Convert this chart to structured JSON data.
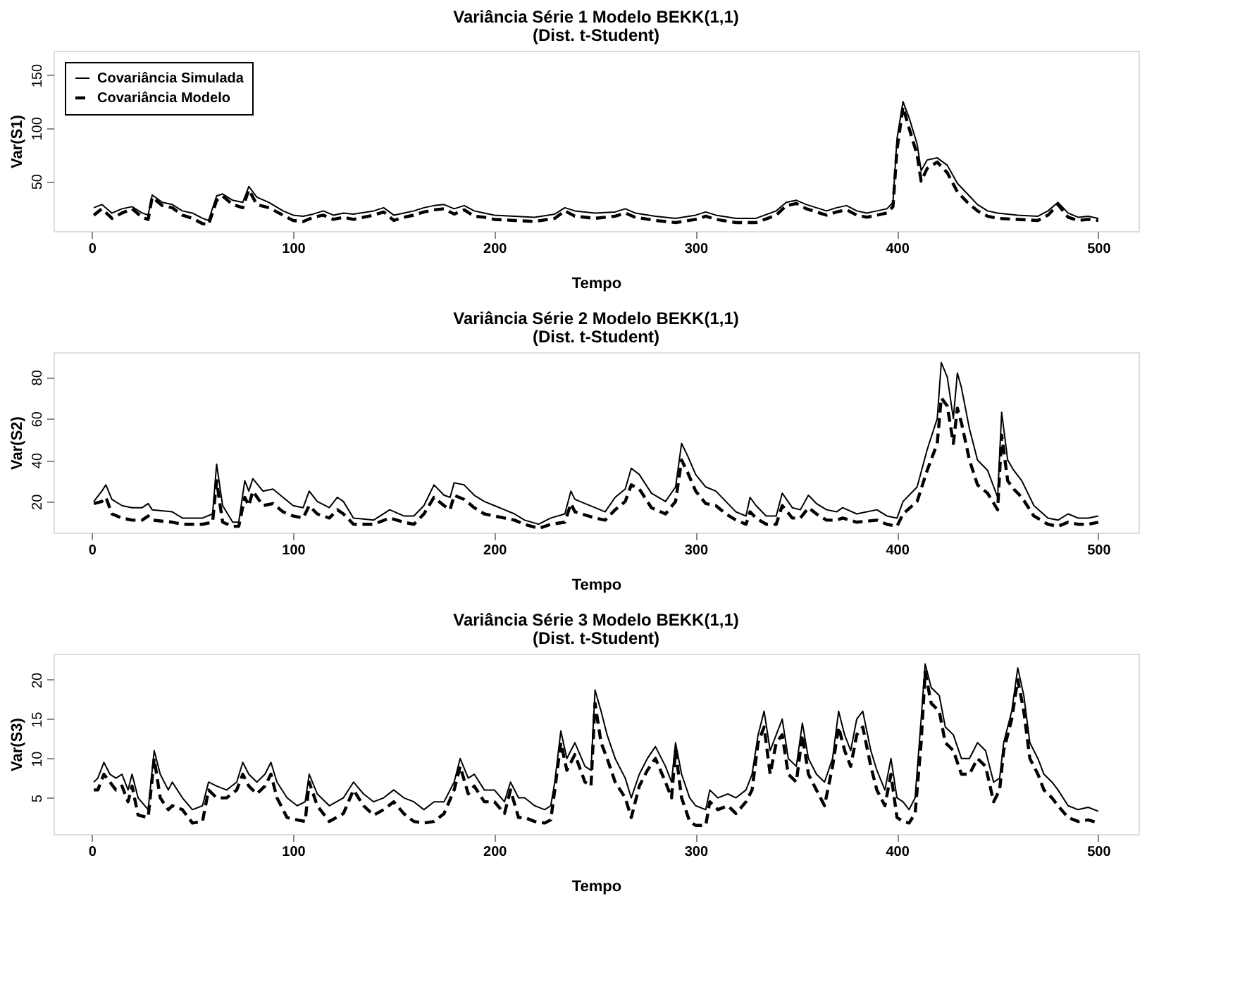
{
  "chart_data": [
    {
      "type": "line",
      "title": "Variância Série 1 Modelo BEKK(1,1)",
      "subtitle": "(Dist. t-Student)",
      "xlabel": "Tempo",
      "ylabel": "Var(S1)",
      "xlim": [
        -19,
        520
      ],
      "xticks": [
        0,
        100,
        200,
        300,
        400,
        500
      ],
      "ylim": [
        3,
        173
      ],
      "yticks": [
        50,
        100,
        150
      ],
      "legend": "top left",
      "x": [
        1,
        5,
        10,
        15,
        20,
        25,
        28,
        30,
        35,
        40,
        45,
        50,
        55,
        58,
        62,
        65,
        70,
        75,
        78,
        82,
        88,
        95,
        100,
        105,
        110,
        115,
        120,
        125,
        130,
        140,
        145,
        150,
        155,
        160,
        165,
        170,
        175,
        180,
        185,
        190,
        195,
        200,
        210,
        220,
        230,
        235,
        240,
        250,
        260,
        265,
        270,
        280,
        290,
        300,
        305,
        310,
        320,
        330,
        340,
        345,
        350,
        355,
        360,
        365,
        370,
        375,
        380,
        385,
        390,
        395,
        398,
        400,
        403,
        406,
        410,
        412,
        415,
        420,
        425,
        430,
        435,
        440,
        445,
        450,
        460,
        470,
        475,
        480,
        485,
        490,
        495,
        500
      ],
      "series": [
        {
          "name": "Covariância Simulada",
          "color": "#000000",
          "line_style": "solid",
          "values": [
            25,
            28,
            20,
            24,
            26,
            20,
            18,
            37,
            30,
            28,
            22,
            20,
            15,
            13,
            36,
            38,
            32,
            30,
            45,
            35,
            30,
            22,
            18,
            17,
            19,
            22,
            18,
            20,
            19,
            22,
            25,
            18,
            20,
            22,
            25,
            27,
            28,
            24,
            27,
            22,
            20,
            18,
            17,
            16,
            19,
            25,
            22,
            20,
            21,
            24,
            20,
            17,
            15,
            18,
            21,
            18,
            15,
            15,
            22,
            30,
            32,
            28,
            25,
            22,
            25,
            27,
            22,
            20,
            22,
            24,
            30,
            90,
            125,
            110,
            85,
            60,
            70,
            72,
            65,
            48,
            38,
            28,
            22,
            20,
            18,
            17,
            22,
            30,
            20,
            16,
            17,
            15
          ]
        },
        {
          "name": "Covariância Modelo",
          "color": "#000000",
          "line_style": "dashed",
          "values": [
            18,
            24,
            15,
            20,
            24,
            16,
            14,
            35,
            27,
            25,
            18,
            15,
            10,
            9,
            32,
            36,
            28,
            25,
            42,
            28,
            25,
            18,
            13,
            12,
            16,
            18,
            14,
            16,
            14,
            18,
            21,
            13,
            16,
            18,
            21,
            23,
            24,
            19,
            23,
            17,
            16,
            14,
            13,
            12,
            15,
            22,
            17,
            15,
            17,
            20,
            16,
            13,
            11,
            14,
            17,
            14,
            11,
            11,
            18,
            27,
            29,
            24,
            21,
            18,
            21,
            23,
            18,
            16,
            18,
            20,
            26,
            80,
            120,
            100,
            75,
            50,
            62,
            68,
            58,
            40,
            30,
            22,
            17,
            15,
            14,
            13,
            18,
            28,
            16,
            13,
            14,
            13
          ]
        }
      ]
    },
    {
      "type": "line",
      "title": "Variância Série 2 Modelo BEKK(1,1)",
      "subtitle": "(Dist. t-Student)",
      "xlabel": "Tempo",
      "ylabel": "Var(S2)",
      "xlim": [
        -19,
        520
      ],
      "xticks": [
        0,
        100,
        200,
        300,
        400,
        500
      ],
      "ylim": [
        5,
        92
      ],
      "yticks": [
        20,
        40,
        60,
        80
      ],
      "x": [
        1,
        5,
        7,
        10,
        15,
        20,
        25,
        28,
        30,
        40,
        45,
        55,
        60,
        62,
        65,
        70,
        73,
        76,
        78,
        80,
        85,
        90,
        95,
        100,
        105,
        108,
        112,
        118,
        122,
        125,
        130,
        140,
        148,
        155,
        160,
        165,
        170,
        175,
        178,
        180,
        185,
        190,
        195,
        200,
        205,
        210,
        215,
        222,
        228,
        235,
        238,
        240,
        250,
        255,
        260,
        265,
        268,
        272,
        278,
        285,
        290,
        293,
        296,
        300,
        305,
        310,
        315,
        320,
        325,
        327,
        330,
        335,
        340,
        343,
        348,
        352,
        356,
        360,
        365,
        370,
        373,
        380,
        390,
        395,
        400,
        403,
        410,
        415,
        420,
        422,
        425,
        428,
        430,
        432,
        436,
        440,
        445,
        450,
        452,
        455,
        458,
        462,
        468,
        475,
        480,
        485,
        490,
        495,
        500
      ],
      "series": [
        {
          "color": "#000000",
          "line_style": "solid",
          "values": [
            20,
            25,
            28,
            21,
            18,
            17,
            17,
            19,
            16,
            15,
            12,
            12,
            14,
            38,
            18,
            10,
            10,
            30,
            25,
            31,
            25,
            26,
            22,
            18,
            17,
            25,
            20,
            17,
            22,
            20,
            12,
            11,
            16,
            13,
            13,
            18,
            28,
            23,
            22,
            29,
            28,
            23,
            20,
            18,
            16,
            14,
            11,
            9,
            12,
            14,
            25,
            21,
            17,
            15,
            22,
            26,
            36,
            33,
            24,
            20,
            27,
            48,
            42,
            33,
            27,
            25,
            20,
            15,
            13,
            22,
            18,
            13,
            13,
            24,
            17,
            16,
            23,
            19,
            16,
            15,
            17,
            14,
            16,
            13,
            12,
            20,
            27,
            45,
            60,
            87,
            80,
            60,
            82,
            75,
            55,
            40,
            35,
            22,
            63,
            40,
            35,
            30,
            18,
            12,
            11,
            14,
            12,
            12,
            13
          ]
        },
        {
          "color": "#000000",
          "line_style": "dashed",
          "values": [
            19,
            20,
            22,
            14,
            12,
            11,
            11,
            13,
            11,
            10,
            9,
            9,
            10,
            30,
            10,
            8,
            8,
            22,
            18,
            25,
            18,
            19,
            15,
            13,
            12,
            18,
            14,
            12,
            16,
            14,
            9,
            9,
            12,
            10,
            9,
            14,
            22,
            18,
            16,
            23,
            21,
            17,
            14,
            13,
            12,
            11,
            9,
            7,
            9,
            10,
            19,
            15,
            12,
            11,
            16,
            20,
            28,
            26,
            17,
            14,
            20,
            40,
            34,
            25,
            19,
            18,
            14,
            11,
            9,
            15,
            12,
            9,
            9,
            18,
            12,
            12,
            17,
            14,
            11,
            11,
            12,
            10,
            11,
            9,
            8,
            14,
            20,
            35,
            48,
            70,
            66,
            48,
            65,
            58,
            40,
            28,
            24,
            16,
            52,
            30,
            26,
            22,
            13,
            9,
            8,
            10,
            9,
            9,
            10
          ]
        }
      ]
    },
    {
      "type": "line",
      "title": "Variância Série 3 Modelo BEKK(1,1)",
      "subtitle": "(Dist. t-Student)",
      "xlabel": "Tempo",
      "ylabel": "Var(S3)",
      "xlim": [
        -19,
        520
      ],
      "xticks": [
        0,
        100,
        200,
        300,
        400,
        500
      ],
      "ylim": [
        0.4,
        23.3
      ],
      "yticks": [
        5,
        10,
        15,
        20
      ],
      "x": [
        1,
        3,
        6,
        9,
        12,
        15,
        18,
        20,
        23,
        28,
        31,
        34,
        38,
        40,
        45,
        50,
        55,
        58,
        62,
        67,
        72,
        75,
        78,
        82,
        86,
        89,
        92,
        97,
        102,
        106,
        108,
        112,
        118,
        125,
        130,
        135,
        140,
        145,
        150,
        155,
        160,
        165,
        170,
        175,
        180,
        183,
        187,
        190,
        195,
        200,
        205,
        208,
        212,
        215,
        220,
        225,
        228,
        230,
        233,
        236,
        240,
        245,
        248,
        250,
        253,
        256,
        260,
        265,
        268,
        272,
        276,
        280,
        285,
        288,
        290,
        293,
        297,
        300,
        305,
        307,
        311,
        316,
        320,
        325,
        328,
        331,
        334,
        337,
        340,
        343,
        346,
        350,
        353,
        356,
        360,
        364,
        368,
        371,
        374,
        377,
        380,
        383,
        387,
        390,
        394,
        397,
        400,
        403,
        406,
        409,
        412,
        414,
        417,
        421,
        424,
        428,
        432,
        436,
        440,
        444,
        448,
        451,
        453,
        457,
        460,
        463,
        466,
        470,
        473,
        477,
        480,
        485,
        490,
        495,
        500
      ],
      "series": [
        {
          "color": "#000000",
          "line_style": "solid",
          "values": [
            7,
            7.5,
            9.5,
            8,
            7.5,
            8,
            6,
            8,
            5,
            3.5,
            11,
            8,
            6,
            7,
            5,
            3.5,
            4,
            7,
            6.5,
            6,
            7,
            9.5,
            8,
            7,
            8,
            9.5,
            7,
            5,
            4,
            4.5,
            8,
            5.5,
            4,
            5,
            7,
            5.5,
            4.5,
            5,
            6,
            5,
            4.5,
            3.5,
            4.5,
            4.5,
            7,
            10,
            7.5,
            8,
            6,
            6,
            4.5,
            7,
            5,
            5,
            4,
            3.5,
            4,
            7,
            13.5,
            10,
            12,
            9,
            8.5,
            18.7,
            16,
            13,
            10,
            7.5,
            5,
            8,
            10,
            11.5,
            9,
            7,
            12,
            8,
            5,
            4,
            3.5,
            6,
            5,
            5.5,
            5,
            6,
            8,
            13,
            16,
            11,
            13,
            15,
            10,
            9,
            14.5,
            10,
            8,
            7,
            10,
            16,
            13,
            11,
            15,
            16,
            11,
            8.5,
            6,
            10,
            5,
            4.5,
            3.5,
            5,
            15,
            22,
            19,
            18,
            14,
            13,
            10,
            10,
            12,
            11,
            7,
            7.5,
            12,
            16,
            21.5,
            18,
            12,
            10,
            8,
            7,
            6,
            4,
            3.5,
            3.8,
            3.3
          ]
        },
        {
          "color": "#000000",
          "line_style": "dashed",
          "values": [
            6,
            6,
            8,
            7,
            6,
            6.5,
            4.5,
            6.5,
            2.8,
            2.5,
            10,
            5,
            3.5,
            4,
            3.5,
            1.8,
            2,
            6,
            5,
            5,
            6,
            8,
            6.5,
            5.5,
            6.5,
            8,
            5,
            2.5,
            2.2,
            2,
            7,
            4,
            2,
            3,
            6,
            4,
            2.8,
            3.5,
            4.5,
            3,
            2,
            1.8,
            2,
            3,
            6,
            9,
            5.5,
            6.5,
            4.5,
            4.5,
            3,
            6,
            2.5,
            2.5,
            2,
            1.8,
            2.2,
            6,
            12,
            8.5,
            10.5,
            7,
            6.5,
            17,
            12,
            10,
            7,
            5,
            2.5,
            6.5,
            8.5,
            10,
            7,
            5,
            11,
            5,
            2,
            1.5,
            1.5,
            4.5,
            3.5,
            4,
            3,
            4.5,
            6,
            12,
            14,
            8,
            12,
            13,
            8,
            7,
            13,
            8,
            6,
            4,
            9,
            14,
            11,
            9,
            13,
            14,
            9,
            6,
            4,
            8,
            2.5,
            2,
            1.8,
            3,
            12,
            21,
            17,
            16,
            12,
            11,
            8,
            8,
            10,
            9,
            4.5,
            6,
            11,
            15,
            20,
            16,
            10,
            8,
            6,
            5,
            4,
            2.5,
            2,
            2.2,
            1.8
          ]
        }
      ]
    }
  ]
}
